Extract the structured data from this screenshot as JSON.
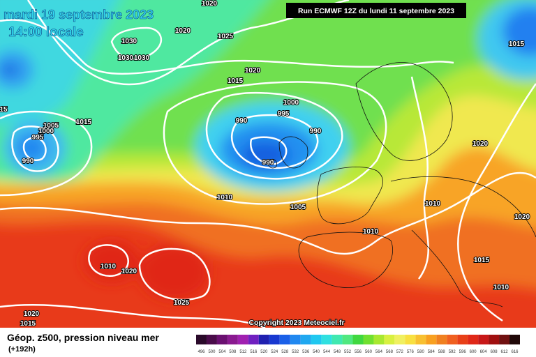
{
  "header": {
    "date": "mardi 19 septembre 2023",
    "time": "14:00 locale",
    "run": "Run ECMWF 12Z du lundi 11 septembre 2023"
  },
  "isobar_labels": [
    "1020",
    "1020",
    "1025",
    "1030",
    "1030",
    "1030",
    "1015",
    "1020",
    "1015",
    "1000",
    "995",
    "990",
    "990",
    "1015",
    "1005",
    "1000",
    "995",
    "990",
    "990",
    "15",
    "1020",
    "1010",
    "1005",
    "1010",
    "1020",
    "1010",
    "1015",
    "1010",
    "1020",
    "1010",
    "1025",
    "1020",
    "1015"
  ],
  "footer": {
    "title": "Géop. z500, pression niveau mer",
    "lead": "(+192h)",
    "copyright": "Copyright 2023 Meteociel.fr"
  },
  "scale": {
    "labels": [
      496,
      500,
      504,
      508,
      512,
      516,
      520,
      524,
      528,
      532,
      536,
      540,
      544,
      548,
      552,
      556,
      560,
      564,
      568,
      572,
      576,
      580,
      584,
      588,
      592,
      596,
      600,
      604,
      608,
      612,
      616
    ],
    "colors": [
      "#2a0a2a",
      "#4a0c4a",
      "#6a1070",
      "#8a1a90",
      "#a020b0",
      "#7020c0",
      "#2020b0",
      "#1838d0",
      "#1a60e8",
      "#2088f0",
      "#20a8f0",
      "#20c8f0",
      "#30e0e0",
      "#40e8b0",
      "#50e880",
      "#40d840",
      "#70e030",
      "#a8e830",
      "#d8f040",
      "#f0f060",
      "#f8e040",
      "#f8c030",
      "#f8a020",
      "#f08020",
      "#f06020",
      "#e84018",
      "#e02818",
      "#c81818",
      "#a01010",
      "#701010",
      "#200808"
    ]
  }
}
